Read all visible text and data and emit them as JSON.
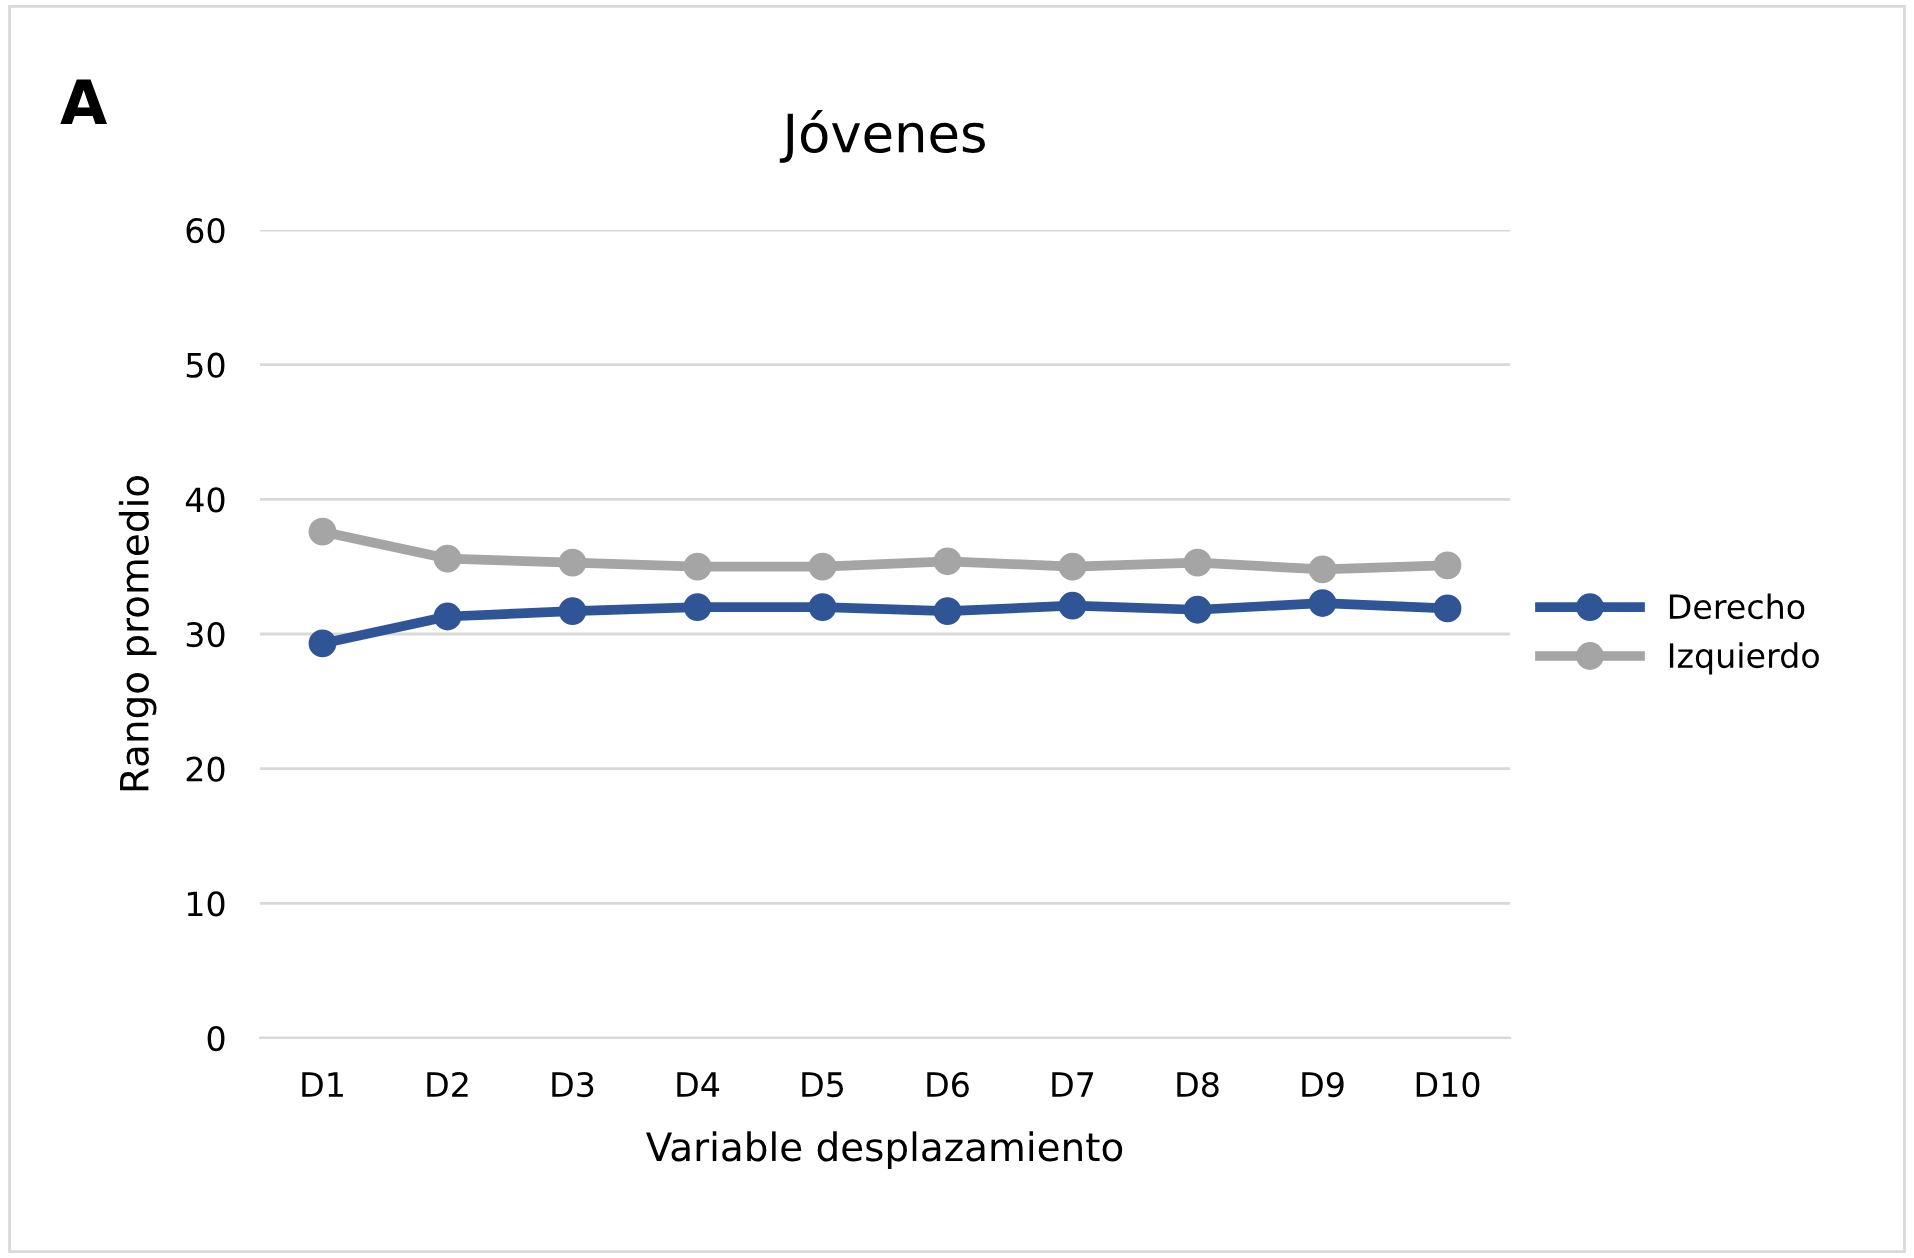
{
  "chart_data": {
    "type": "line",
    "title": "Jóvenes",
    "xlabel": "Variable desplazamiento",
    "ylabel": "Rango promedio",
    "annotations": [
      "A"
    ],
    "categories": [
      "D1",
      "D2",
      "D3",
      "D4",
      "D5",
      "D6",
      "D7",
      "D8",
      "D9",
      "D10"
    ],
    "series": [
      {
        "name": "Derecho",
        "color": "#2f5597",
        "values": [
          29.3,
          31.3,
          31.7,
          32.0,
          32.0,
          31.7,
          32.1,
          31.8,
          32.3,
          31.9
        ]
      },
      {
        "name": "Izquierdo",
        "color": "#a5a5a5",
        "values": [
          37.6,
          35.6,
          35.3,
          35.0,
          35.0,
          35.4,
          35.0,
          35.3,
          34.8,
          35.1
        ]
      }
    ],
    "ylim": [
      0,
      60
    ],
    "yticks": [
      0,
      10,
      20,
      30,
      40,
      50,
      60
    ],
    "grid": "y",
    "legend": "right",
    "marker": "circle",
    "line_style": "solid"
  }
}
